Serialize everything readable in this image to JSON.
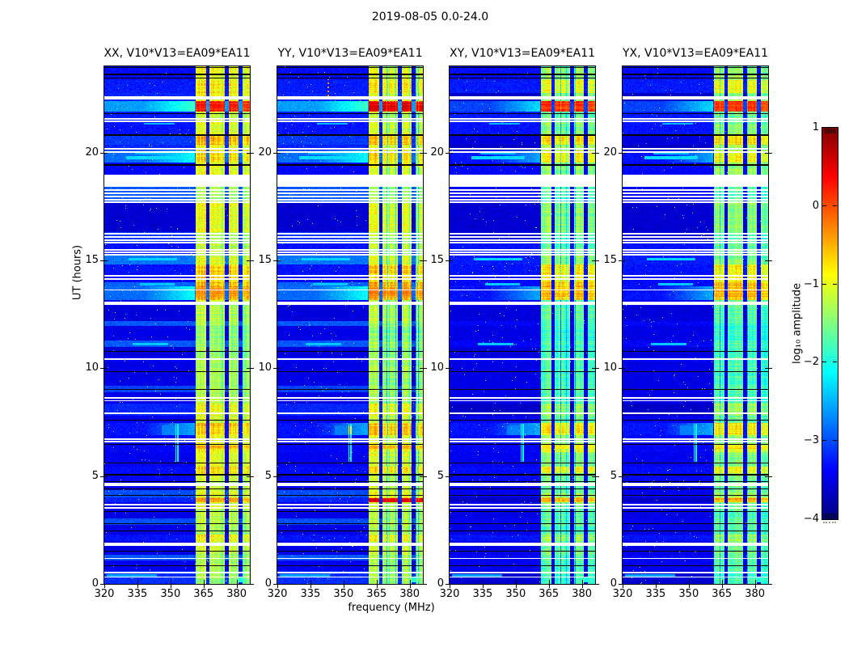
{
  "figure": {
    "title": "2019-08-05 0.0-24.0",
    "xlabel": "frequency (MHz)",
    "ylabel": "UT (hours)"
  },
  "panels": [
    {
      "title": "XX, V10*V13=EA09*EA11"
    },
    {
      "title": "YY, V10*V13=EA09*EA11"
    },
    {
      "title": "XY, V10*V13=EA09*EA11"
    },
    {
      "title": "YX, V10*V13=EA09*EA11"
    }
  ],
  "axes": {
    "x_ticks": [
      320,
      335,
      350,
      365,
      380
    ],
    "y_ticks": [
      0,
      5,
      10,
      15,
      20
    ]
  },
  "colorbar": {
    "label": "log₁₀ amplitude",
    "tick_labels": [
      "1",
      "0",
      "−1",
      "−2",
      "−3",
      "−4"
    ],
    "tick_values": [
      1,
      0,
      -1,
      -2,
      -3,
      -4
    ],
    "vmin": -4,
    "vmax": 1,
    "colormap": "jet"
  },
  "chart_data": {
    "type": "heatmap",
    "title": "2019-08-05 0.0-24.0",
    "xlabel": "frequency (MHz)",
    "ylabel": "UT (hours)",
    "x_range": [
      320,
      386
    ],
    "y_range": [
      0,
      24
    ],
    "value_scale": "log10 amplitude",
    "value_range": [
      -4,
      1
    ],
    "subbands": [
      [
        361.4,
        366.2
      ],
      [
        367.7,
        374.6
      ],
      [
        376.5,
        380.9
      ],
      [
        382.7,
        386.4
      ]
    ],
    "segments": [
      [
        0.0,
        0.6,
        -3.15,
        -1.35,
        0
      ],
      [
        0.6,
        1.1,
        -3.45,
        -1.3,
        0
      ],
      [
        1.1,
        1.35,
        -2.95,
        -1.25,
        0
      ],
      [
        1.35,
        2.0,
        -3.5,
        -1.15,
        0
      ],
      [
        2.0,
        2.3,
        -3.3,
        -0.9,
        0
      ],
      [
        2.3,
        2.75,
        -3.5,
        -1.3,
        0
      ],
      [
        2.75,
        3.05,
        -3.0,
        -1.2,
        0
      ],
      [
        3.05,
        3.45,
        -3.5,
        -1.25,
        0
      ],
      [
        3.45,
        3.8,
        -3.45,
        -1.1,
        0
      ],
      [
        3.8,
        4.0,
        -3.2,
        -0.55,
        0
      ],
      [
        4.0,
        4.35,
        -3.0,
        -1.0,
        0
      ],
      [
        4.35,
        4.75,
        -3.45,
        -1.2,
        0
      ],
      [
        4.75,
        5.15,
        -3.4,
        -1.1,
        0
      ],
      [
        5.15,
        5.45,
        -3.35,
        -0.75,
        0
      ],
      [
        5.45,
        6.1,
        -3.45,
        -1.05,
        0
      ],
      [
        6.1,
        6.45,
        -3.4,
        -0.85,
        0
      ],
      [
        6.45,
        6.9,
        -3.35,
        -1.0,
        0
      ],
      [
        6.9,
        7.45,
        -3.3,
        -0.65,
        1
      ],
      [
        7.45,
        7.8,
        -3.45,
        -1.15,
        0
      ],
      [
        7.8,
        8.35,
        -3.2,
        -0.95,
        0
      ],
      [
        8.35,
        8.9,
        -3.5,
        -1.3,
        0
      ],
      [
        8.9,
        9.2,
        -3.05,
        -1.25,
        0
      ],
      [
        9.2,
        10.3,
        -3.5,
        -1.35,
        0
      ],
      [
        10.3,
        10.55,
        -3.4,
        -1.3,
        0
      ],
      [
        10.55,
        11.0,
        -3.55,
        -1.4,
        0
      ],
      [
        11.0,
        11.3,
        -2.95,
        -1.35,
        0
      ],
      [
        11.3,
        11.95,
        -3.5,
        -1.45,
        0
      ],
      [
        11.95,
        12.2,
        -2.95,
        -1.3,
        0
      ],
      [
        12.2,
        12.9,
        -3.55,
        -1.25,
        0
      ],
      [
        12.9,
        13.15,
        -3.4,
        -1.2,
        0
      ],
      [
        13.15,
        13.8,
        -2.85,
        -0.45,
        1
      ],
      [
        13.8,
        14.0,
        -2.9,
        -0.5,
        0
      ],
      [
        14.0,
        14.35,
        -3.35,
        -0.75,
        0
      ],
      [
        14.35,
        14.8,
        -3.3,
        -0.7,
        0
      ],
      [
        14.8,
        15.25,
        -2.8,
        -1.05,
        0
      ],
      [
        15.25,
        15.85,
        -3.3,
        -1.2,
        0
      ],
      [
        15.85,
        16.3,
        -3.1,
        -1.25,
        0
      ],
      [
        16.3,
        17.65,
        -3.6,
        -1.0,
        0
      ],
      [
        17.65,
        18.4,
        -2.95,
        -1.3,
        0
      ],
      [
        18.4,
        18.95,
        -3.2,
        -1.2,
        0
      ],
      [
        18.95,
        19.55,
        -3.4,
        -1.0,
        0
      ],
      [
        19.55,
        20.1,
        -2.85,
        -0.75,
        1
      ],
      [
        20.1,
        20.35,
        -3.2,
        -0.9,
        0
      ],
      [
        20.35,
        20.8,
        -3.1,
        -0.6,
        0
      ],
      [
        20.8,
        21.45,
        -3.3,
        -1.05,
        0
      ],
      [
        21.45,
        21.9,
        -3.25,
        -1.15,
        0
      ],
      [
        21.9,
        22.4,
        -2.6,
        0.25,
        1
      ],
      [
        22.4,
        22.75,
        -3.2,
        -1.0,
        0
      ],
      [
        22.75,
        23.35,
        -3.25,
        -0.85,
        0
      ],
      [
        23.35,
        23.95,
        -3.35,
        -0.95,
        0
      ],
      [
        23.95,
        24.0,
        -3.4,
        -1.2,
        0
      ]
    ],
    "white_stripes": [
      [
        22.52,
        4
      ],
      [
        21.57,
        2
      ],
      [
        21.44,
        2
      ],
      [
        20.17,
        2
      ],
      [
        20.04,
        2
      ],
      [
        18.68,
        15
      ],
      [
        18.27,
        2
      ],
      [
        18.12,
        2
      ],
      [
        17.97,
        2
      ],
      [
        17.82,
        2
      ],
      [
        17.69,
        2
      ],
      [
        16.22,
        2
      ],
      [
        16.08,
        2
      ],
      [
        15.94,
        2
      ],
      [
        15.81,
        2
      ],
      [
        15.47,
        2
      ],
      [
        15.36,
        2
      ],
      [
        15.27,
        2
      ],
      [
        14.27,
        2
      ],
      [
        14.13,
        2
      ],
      [
        13.65,
        1
      ],
      [
        13.0,
        4
      ],
      [
        10.44,
        2
      ],
      [
        8.62,
        2
      ],
      [
        8.49,
        1
      ],
      [
        7.9,
        2
      ],
      [
        6.72,
        2
      ],
      [
        6.59,
        2
      ],
      [
        4.62,
        4
      ],
      [
        3.66,
        2
      ],
      [
        3.53,
        2
      ],
      [
        1.85,
        4
      ],
      [
        1.2,
        1
      ],
      [
        0.54,
        2
      ],
      [
        0.33,
        1
      ]
    ],
    "black_stripes": [
      [
        23.93,
        1
      ],
      [
        23.62,
        2
      ],
      [
        23.44,
        1
      ],
      [
        21.79,
        1
      ],
      [
        20.82,
        2
      ],
      [
        19.41,
        2
      ],
      [
        10.79,
        1
      ],
      [
        9.83,
        1
      ],
      [
        9.01,
        1
      ],
      [
        7.61,
        1
      ],
      [
        6.46,
        1
      ],
      [
        5.62,
        1
      ],
      [
        5.06,
        2
      ],
      [
        4.73,
        1
      ],
      [
        4.41,
        1
      ],
      [
        4.09,
        1
      ],
      [
        3.34,
        1
      ],
      [
        2.78,
        1
      ],
      [
        2.45,
        1
      ],
      [
        1.51,
        1
      ],
      [
        0.83,
        1
      ]
    ],
    "red_rows": [
      [
        21.95,
        22.35,
        [
          0.25,
          0.45,
          0.1,
          0.15
        ]
      ],
      [
        13.3,
        13.75,
        [
          -0.35,
          -0.3,
          -0.6,
          -0.5
        ]
      ],
      [
        3.8,
        3.98,
        [
          -0.5,
          0.5,
          -0.45,
          -0.5
        ]
      ],
      [
        6.25,
        6.42,
        [
          -0.55,
          -0.5,
          -0.8,
          -0.7
        ]
      ]
    ],
    "streak_boxes": [
      [
        19.7,
        19.85,
        330,
        354,
        -2.3
      ],
      [
        19.9,
        20.0,
        334,
        350,
        -2.45
      ],
      [
        15.0,
        15.1,
        331,
        353,
        -2.35
      ],
      [
        11.08,
        11.18,
        333,
        349,
        -2.4
      ],
      [
        13.85,
        13.95,
        336,
        352,
        -2.4
      ],
      [
        0.35,
        0.45,
        321,
        344,
        -2.55
      ],
      [
        6.9,
        7.35,
        346,
        357,
        -2.75
      ],
      [
        21.3,
        21.38,
        338,
        352,
        -2.5
      ],
      [
        0.08,
        0.35,
        378.5,
        386,
        -2.0
      ]
    ],
    "vline": {
      "f_cols": [
        [
          352.2,
          352.7
        ],
        [
          353.05,
          353.55
        ]
      ],
      "t0": 5.65,
      "t1": 7.42,
      "value": -2.1
    },
    "panel2_dotted": {
      "f": 343.0,
      "t0": 22.5,
      "t1": 23.4,
      "value": -0.3
    },
    "panel_mods": {
      "band_delta_weak": [
        0,
        0,
        -0.45,
        -0.4
      ],
      "band_delta_bright": [
        0,
        0.05,
        -0.15,
        -0.12
      ],
      "bg_light_delta": [
        0,
        0,
        -0.45,
        -0.45
      ]
    }
  }
}
